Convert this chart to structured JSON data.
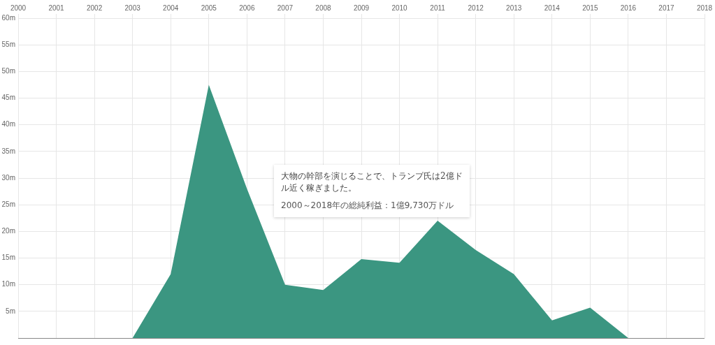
{
  "chart_data": {
    "type": "area",
    "x": [
      2000,
      2001,
      2002,
      2003,
      2004,
      2005,
      2006,
      2007,
      2008,
      2009,
      2010,
      2011,
      2012,
      2013,
      2014,
      2015,
      2016,
      2017,
      2018
    ],
    "series": [
      {
        "color": "#3b9681",
        "values": [
          0,
          0,
          0,
          0,
          12,
          47.5,
          28,
          10,
          9,
          14.8,
          14.1,
          22,
          16.5,
          12,
          3.3,
          5.7,
          0,
          0,
          0
        ]
      }
    ],
    "xlim": [
      2000,
      2018
    ],
    "xticks": [
      2000,
      2001,
      2002,
      2003,
      2004,
      2005,
      2006,
      2007,
      2008,
      2009,
      2010,
      2011,
      2012,
      2013,
      2014,
      2015,
      2016,
      2017,
      2018
    ],
    "ylim": [
      0,
      60
    ],
    "yticks": [
      {
        "value": 5,
        "label": "5m"
      },
      {
        "value": 10,
        "label": "10m"
      },
      {
        "value": 15,
        "label": "15m"
      },
      {
        "value": 20,
        "label": "20m"
      },
      {
        "value": 25,
        "label": "25m"
      },
      {
        "value": 30,
        "label": "30m"
      },
      {
        "value": 35,
        "label": "35m"
      },
      {
        "value": 40,
        "label": "40m"
      },
      {
        "value": 45,
        "label": "45m"
      },
      {
        "value": 50,
        "label": "50m"
      },
      {
        "value": 55,
        "label": "55m"
      },
      {
        "value": 60,
        "label": "60m"
      }
    ],
    "grid": true,
    "legend": false,
    "annotations": [
      "大物の幹部を演じることで、トランプ氏は2億ドル近く稼ぎました。",
      "2000～2018年の総純利益：1億9,730万ドル"
    ]
  }
}
